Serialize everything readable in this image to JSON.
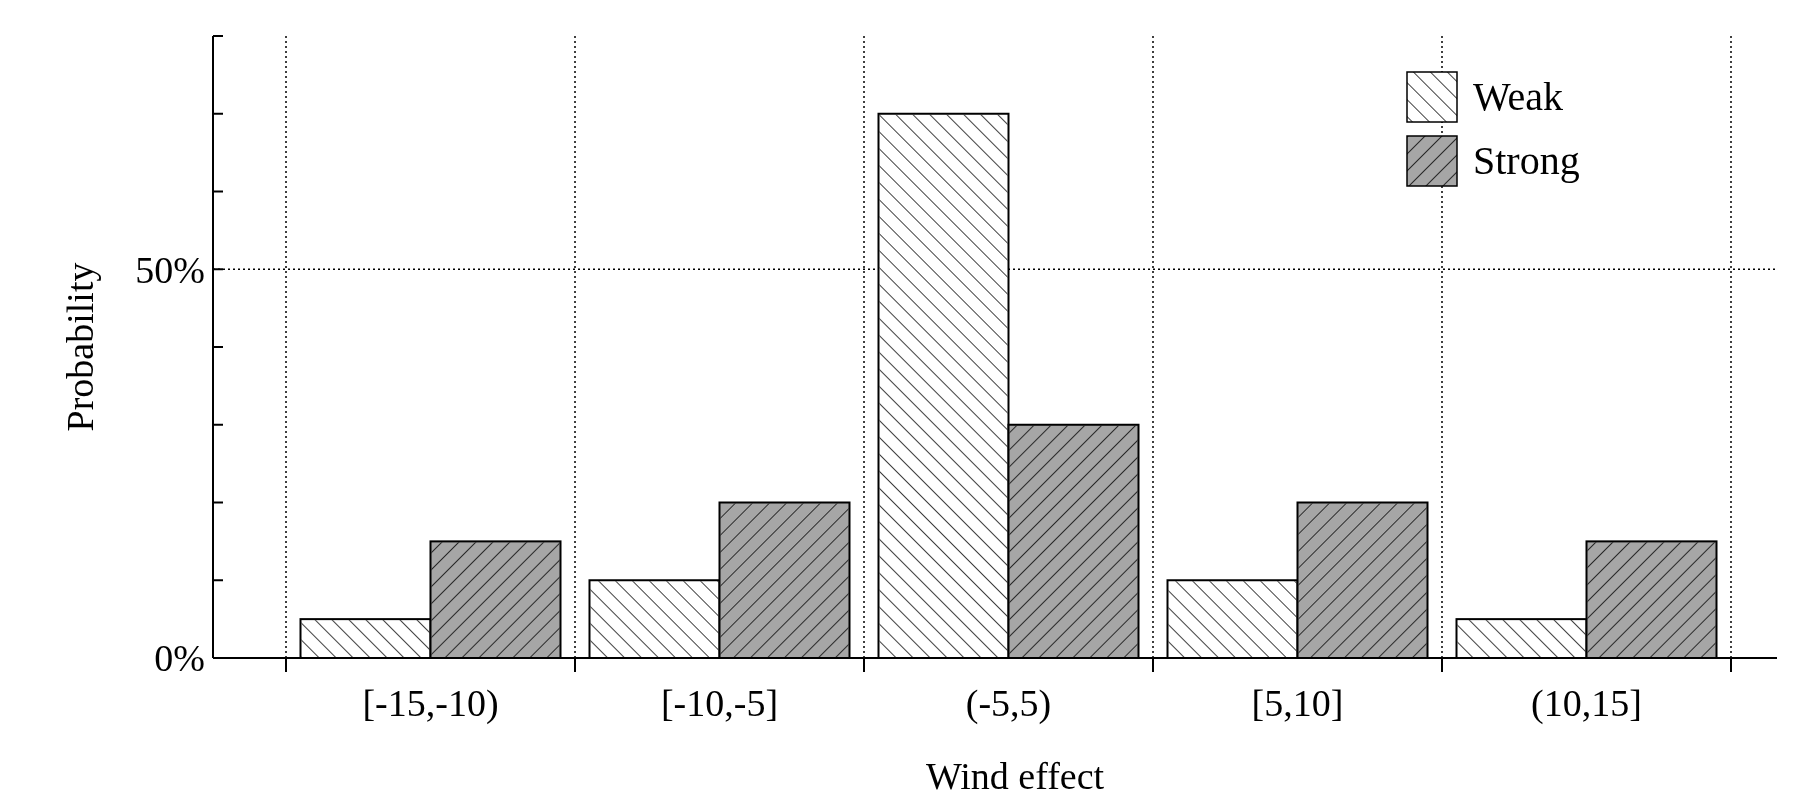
{
  "chart_data": {
    "type": "bar",
    "xlabel": "Wind effect",
    "ylabel": "Probability",
    "categories": [
      "[-15,-10)",
      "[-10,-5]",
      "(-5,5)",
      "[5,10]",
      "(10,15]"
    ],
    "series": [
      {
        "name": "Weak",
        "color": "#ffffff",
        "values": [
          5,
          10,
          70,
          10,
          5
        ]
      },
      {
        "name": "Strong",
        "color": "#a6a6a6",
        "values": [
          15,
          20,
          30,
          20,
          15
        ]
      }
    ],
    "ylim": [
      0,
      80
    ],
    "yticks": [
      {
        "value": 0,
        "label": "0%"
      },
      {
        "value": 10,
        "label": null
      },
      {
        "value": 20,
        "label": null
      },
      {
        "value": 30,
        "label": null
      },
      {
        "value": 40,
        "label": null
      },
      {
        "value": 50,
        "label": "50%"
      },
      {
        "value": 60,
        "label": null
      },
      {
        "value": 70,
        "label": null
      },
      {
        "value": 80,
        "label": null
      }
    ],
    "grid": true,
    "legend": "top right"
  }
}
